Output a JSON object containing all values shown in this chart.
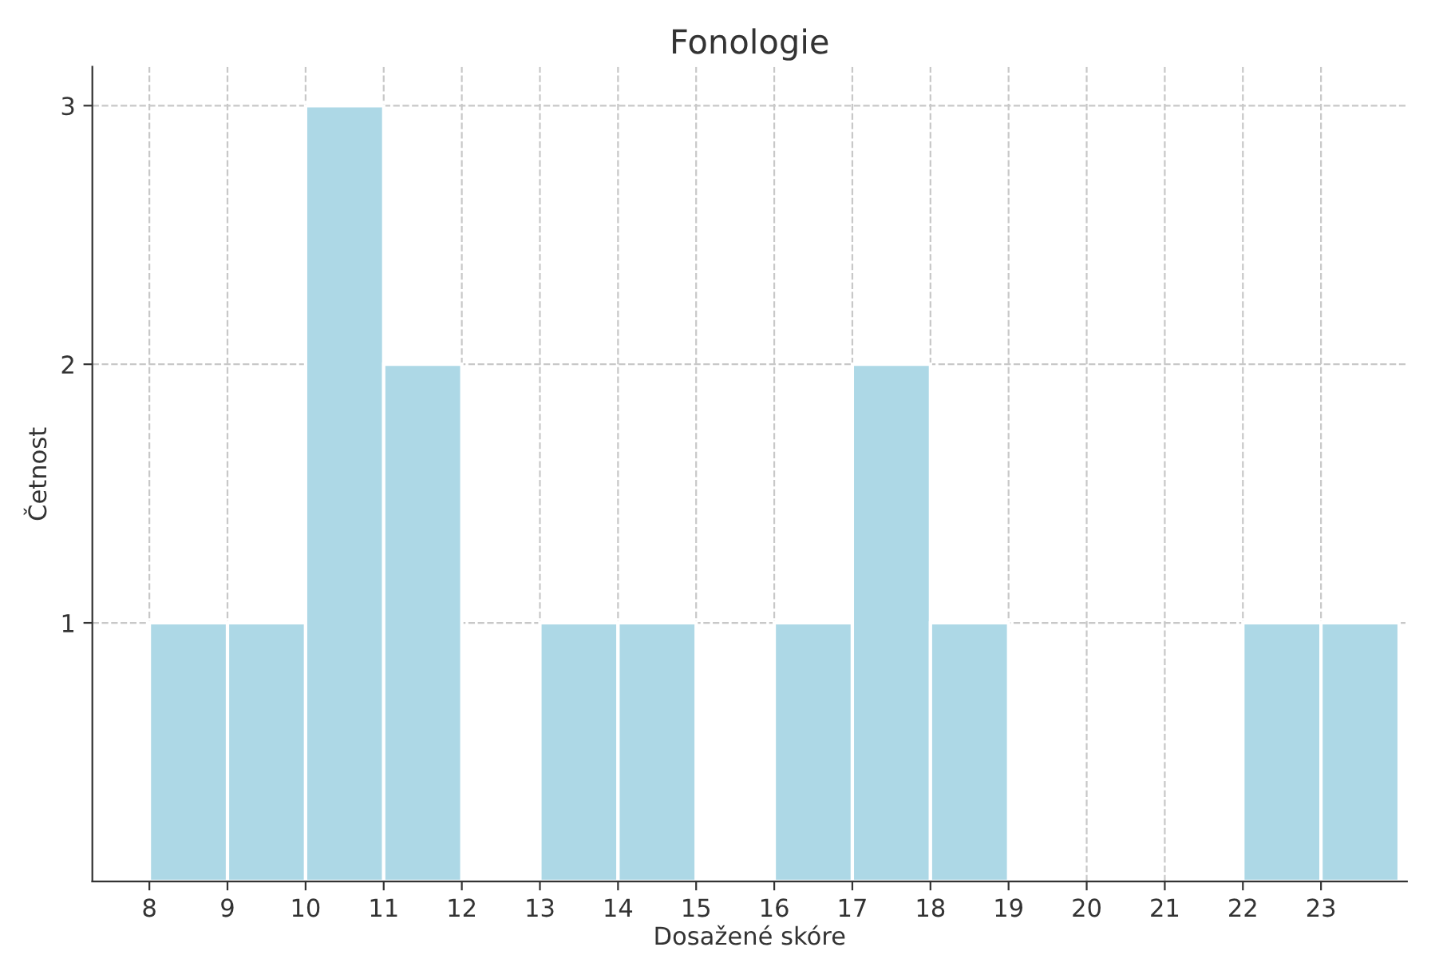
{
  "chart_data": {
    "type": "histogram",
    "title": "Fonologie",
    "xlabel": "Dosažené skóre",
    "ylabel": "Četnost",
    "bins": [
      8,
      9,
      10,
      11,
      12,
      13,
      14,
      15,
      16,
      17,
      18,
      19,
      20,
      21,
      22,
      23,
      24
    ],
    "values": [
      1,
      1,
      3,
      2,
      0,
      1,
      1,
      0,
      1,
      2,
      1,
      0,
      0,
      0,
      1,
      1
    ],
    "color": "#add8e6",
    "xlim": [
      7.27,
      24.1
    ],
    "ylim": [
      0,
      3.15
    ],
    "xticks": [
      8,
      9,
      10,
      11,
      12,
      13,
      14,
      15,
      16,
      17,
      18,
      19,
      20,
      21,
      22,
      23
    ],
    "yticks": [
      1,
      2,
      3
    ],
    "grid": true,
    "line_style": "dashed"
  }
}
